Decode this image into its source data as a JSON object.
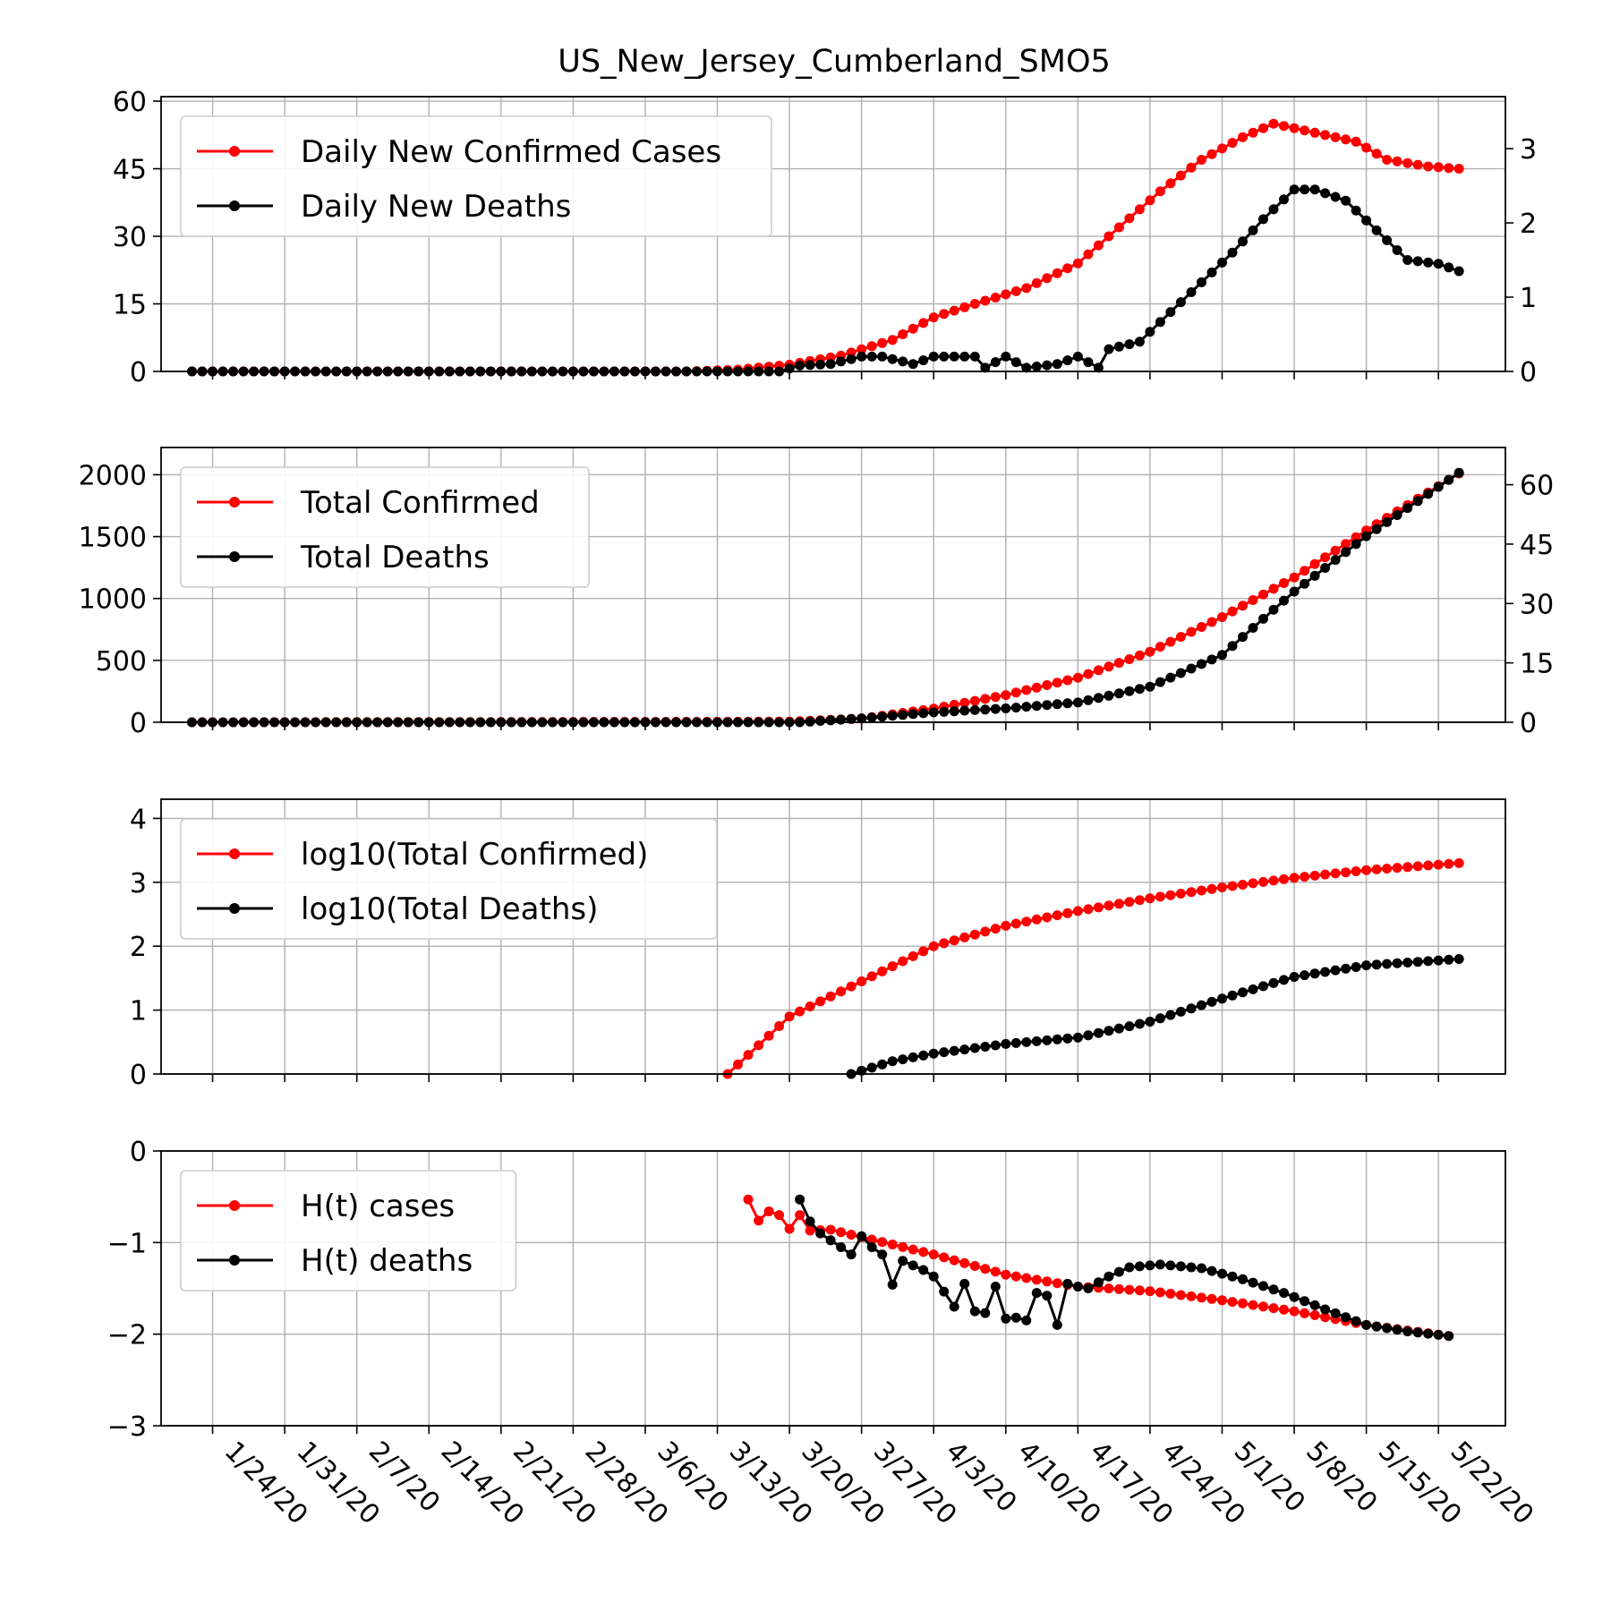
{
  "title": "US_New_Jersey_Cumberland_SMO5",
  "colors": {
    "cases": "#ff0000",
    "deaths": "#000000",
    "grid": "#b0b0b0"
  },
  "x_tick_labels": [
    "1/24/20",
    "1/31/20",
    "2/7/20",
    "2/14/20",
    "2/21/20",
    "2/28/20",
    "3/6/20",
    "3/13/20",
    "3/20/20",
    "3/27/20",
    "4/3/20",
    "4/10/20",
    "4/17/20",
    "4/24/20",
    "5/1/20",
    "5/8/20",
    "5/15/20",
    "5/22/20"
  ],
  "chart_data": [
    {
      "type": "line",
      "x_start": "1/22/20",
      "x_end": "5/24/20",
      "grid": true,
      "legend_position": "top-left",
      "left_axis": {
        "ylim": [
          0,
          61
        ],
        "ticks": [
          "0",
          "15",
          "30",
          "45",
          "60"
        ]
      },
      "right_axis": {
        "ylim": [
          0,
          3.7
        ],
        "ticks": [
          "0",
          "1",
          "2",
          "3"
        ]
      },
      "series": [
        {
          "name": "Daily New Confirmed Cases",
          "axis": "left",
          "color": "#ff0000",
          "points": [
            [
              "1/22/20",
              0
            ],
            [
              "3/10/20",
              0
            ],
            [
              "3/15/20",
              0.4
            ],
            [
              "3/20/20",
              1.5
            ],
            [
              "3/25/20",
              3.5
            ],
            [
              "3/30/20",
              7
            ],
            [
              "4/3/20",
              12
            ],
            [
              "4/7/20",
              15
            ],
            [
              "4/12/20",
              18.5
            ],
            [
              "4/17/20",
              24
            ],
            [
              "4/21/20",
              32
            ],
            [
              "4/25/20",
              40
            ],
            [
              "4/29/20",
              47
            ],
            [
              "5/3/20",
              52
            ],
            [
              "5/6/20",
              55
            ],
            [
              "5/10/20",
              53
            ],
            [
              "5/14/20",
              51
            ],
            [
              "5/17/20",
              47
            ],
            [
              "5/21/20",
              45.5
            ],
            [
              "5/24/20",
              45
            ]
          ]
        },
        {
          "name": "Daily New Deaths",
          "axis": "right",
          "color": "#000000",
          "points": [
            [
              "1/22/20",
              0
            ],
            [
              "3/19/20",
              0
            ],
            [
              "3/21/20",
              0.08
            ],
            [
              "3/24/20",
              0.1
            ],
            [
              "3/27/20",
              0.2
            ],
            [
              "3/29/20",
              0.2
            ],
            [
              "4/1/20",
              0.1
            ],
            [
              "4/3/20",
              0.2
            ],
            [
              "4/7/20",
              0.2
            ],
            [
              "4/8/20",
              0.05
            ],
            [
              "4/10/20",
              0.2
            ],
            [
              "4/12/20",
              0.05
            ],
            [
              "4/15/20",
              0.1
            ],
            [
              "4/17/20",
              0.2
            ],
            [
              "4/19/20",
              0.05
            ],
            [
              "4/20/20",
              0.3
            ],
            [
              "4/23/20",
              0.4
            ],
            [
              "4/26/20",
              0.8
            ],
            [
              "4/29/20",
              1.2
            ],
            [
              "5/2/20",
              1.6
            ],
            [
              "5/5/20",
              2.05
            ],
            [
              "5/8/20",
              2.45
            ],
            [
              "5/10/20",
              2.45
            ],
            [
              "5/13/20",
              2.3
            ],
            [
              "5/16/20",
              1.9
            ],
            [
              "5/19/20",
              1.5
            ],
            [
              "5/22/20",
              1.45
            ],
            [
              "5/24/20",
              1.35
            ]
          ]
        }
      ]
    },
    {
      "type": "line",
      "x_start": "1/22/20",
      "x_end": "5/24/20",
      "grid": true,
      "legend_position": "top-left",
      "left_axis": {
        "ylim": [
          0,
          2220
        ],
        "ticks": [
          "0",
          "500",
          "1000",
          "1500",
          "2000"
        ]
      },
      "right_axis": {
        "ylim": [
          0,
          69.4
        ],
        "ticks": [
          "0",
          "15",
          "30",
          "45",
          "60"
        ]
      },
      "series": [
        {
          "name": "Total Confirmed",
          "axis": "left",
          "color": "#ff0000",
          "points": [
            [
              "1/22/20",
              0
            ],
            [
              "3/20/20",
              5
            ],
            [
              "3/27/20",
              30
            ],
            [
              "4/3/20",
              110
            ],
            [
              "4/10/20",
              220
            ],
            [
              "4/17/20",
              360
            ],
            [
              "4/24/20",
              570
            ],
            [
              "5/1/20",
              850
            ],
            [
              "5/8/20",
              1170
            ],
            [
              "5/15/20",
              1550
            ],
            [
              "5/24/20",
              2010
            ]
          ]
        },
        {
          "name": "Total Deaths",
          "axis": "right",
          "color": "#000000",
          "points": [
            [
              "1/22/20",
              0
            ],
            [
              "3/21/20",
              0
            ],
            [
              "3/27/20",
              1
            ],
            [
              "4/3/20",
              2.5
            ],
            [
              "4/10/20",
              3.5
            ],
            [
              "4/17/20",
              5
            ],
            [
              "4/24/20",
              9
            ],
            [
              "5/1/20",
              17
            ],
            [
              "5/8/20",
              33
            ],
            [
              "5/15/20",
              47
            ],
            [
              "5/24/20",
              63
            ]
          ]
        }
      ]
    },
    {
      "type": "line",
      "x_start": "1/22/20",
      "x_end": "5/24/20",
      "grid": true,
      "legend_position": "top-left",
      "left_axis": {
        "ylim": [
          0,
          4.3
        ],
        "ticks": [
          "0",
          "1",
          "2",
          "3",
          "4"
        ]
      },
      "series": [
        {
          "name": "log10(Total Confirmed)",
          "axis": "left",
          "color": "#ff0000",
          "points": [
            [
              "3/14/20",
              0
            ],
            [
              "3/20/20",
              0.9
            ],
            [
              "3/27/20",
              1.45
            ],
            [
              "4/3/20",
              2.0
            ],
            [
              "4/10/20",
              2.32
            ],
            [
              "4/17/20",
              2.55
            ],
            [
              "4/24/20",
              2.75
            ],
            [
              "5/1/20",
              2.92
            ],
            [
              "5/8/20",
              3.07
            ],
            [
              "5/15/20",
              3.19
            ],
            [
              "5/24/20",
              3.3
            ]
          ]
        },
        {
          "name": "log10(Total Deaths)",
          "axis": "left",
          "color": "#000000",
          "points": [
            [
              "3/26/20",
              0
            ],
            [
              "3/30/20",
              0.2
            ],
            [
              "4/3/20",
              0.32
            ],
            [
              "4/10/20",
              0.47
            ],
            [
              "4/17/20",
              0.57
            ],
            [
              "4/24/20",
              0.82
            ],
            [
              "5/1/20",
              1.18
            ],
            [
              "5/8/20",
              1.52
            ],
            [
              "5/15/20",
              1.7
            ],
            [
              "5/24/20",
              1.8
            ]
          ]
        }
      ]
    },
    {
      "type": "line",
      "x_start": "1/22/20",
      "x_end": "5/24/20",
      "grid": true,
      "legend_position": "top-left",
      "left_axis": {
        "ylim": [
          -3,
          0
        ],
        "ticks": [
          "−3",
          "−2",
          "−1",
          "0"
        ]
      },
      "series": [
        {
          "name": "H(t) cases",
          "axis": "left",
          "color": "#ff0000",
          "points": [
            [
              "3/16/20",
              -0.53
            ],
            [
              "3/17/20",
              -0.76
            ],
            [
              "3/18/20",
              -0.66
            ],
            [
              "3/19/20",
              -0.7
            ],
            [
              "3/20/20",
              -0.85
            ],
            [
              "3/21/20",
              -0.7
            ],
            [
              "3/22/20",
              -0.87
            ],
            [
              "3/24/20",
              -0.86
            ],
            [
              "3/27/20",
              -0.94
            ],
            [
              "4/3/20",
              -1.13
            ],
            [
              "4/10/20",
              -1.35
            ],
            [
              "4/17/20",
              -1.48
            ],
            [
              "4/24/20",
              -1.53
            ],
            [
              "5/1/20",
              -1.63
            ],
            [
              "5/8/20",
              -1.75
            ],
            [
              "5/15/20",
              -1.9
            ],
            [
              "5/23/20",
              -2.02
            ]
          ]
        },
        {
          "name": "H(t) deaths",
          "axis": "left",
          "color": "#000000",
          "points": [
            [
              "3/21/20",
              -0.53
            ],
            [
              "3/22/20",
              -0.77
            ],
            [
              "3/23/20",
              -0.9
            ],
            [
              "3/25/20",
              -1.05
            ],
            [
              "3/26/20",
              -1.13
            ],
            [
              "3/27/20",
              -0.93
            ],
            [
              "3/28/20",
              -1.05
            ],
            [
              "3/29/20",
              -1.13
            ],
            [
              "3/30/20",
              -1.46
            ],
            [
              "3/31/20",
              -1.2
            ],
            [
              "4/2/20",
              -1.3
            ],
            [
              "4/3/20",
              -1.37
            ],
            [
              "4/5/20",
              -1.7
            ],
            [
              "4/6/20",
              -1.45
            ],
            [
              "4/7/20",
              -1.75
            ],
            [
              "4/8/20",
              -1.77
            ],
            [
              "4/9/20",
              -1.48
            ],
            [
              "4/10/20",
              -1.83
            ],
            [
              "4/11/20",
              -1.82
            ],
            [
              "4/12/20",
              -1.85
            ],
            [
              "4/13/20",
              -1.55
            ],
            [
              "4/14/20",
              -1.58
            ],
            [
              "4/15/20",
              -1.9
            ],
            [
              "4/16/20",
              -1.45
            ],
            [
              "4/17/20",
              -1.48
            ],
            [
              "4/18/20",
              -1.5
            ],
            [
              "4/20/20",
              -1.37
            ],
            [
              "4/22/20",
              -1.27
            ],
            [
              "4/25/20",
              -1.24
            ],
            [
              "4/29/20",
              -1.28
            ],
            [
              "5/3/20",
              -1.4
            ],
            [
              "5/7/20",
              -1.55
            ],
            [
              "5/11/20",
              -1.73
            ],
            [
              "5/15/20",
              -1.9
            ],
            [
              "5/19/20",
              -1.97
            ],
            [
              "5/23/20",
              -2.02
            ]
          ]
        }
      ]
    }
  ]
}
